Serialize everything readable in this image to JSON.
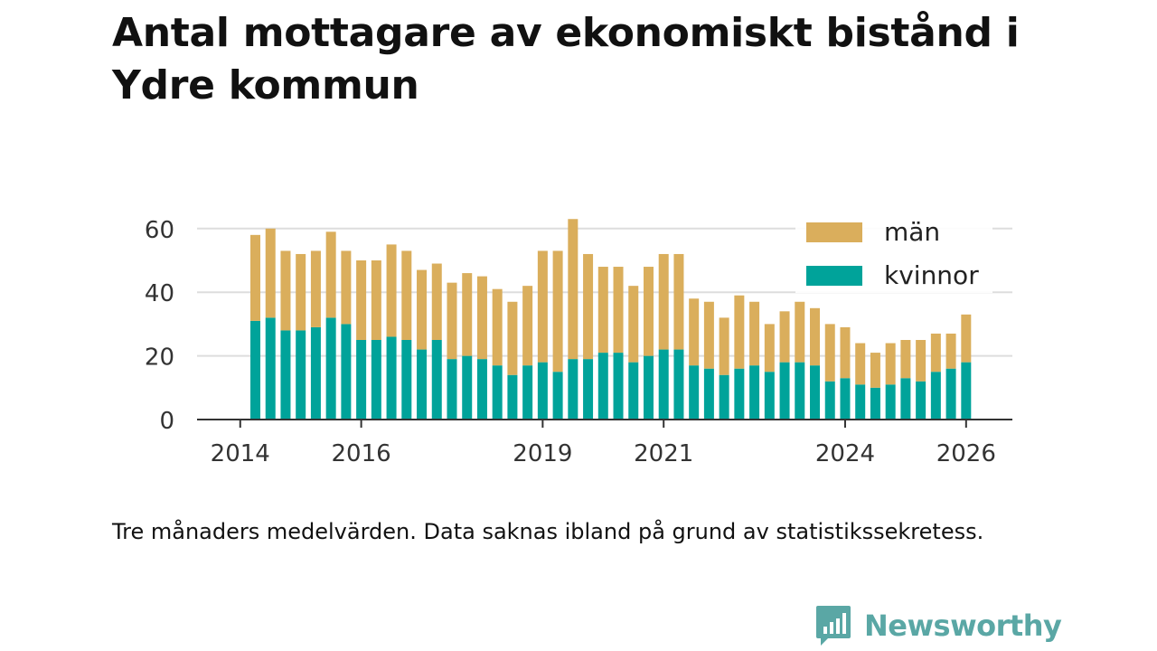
{
  "chart_data": {
    "type": "bar",
    "stacked": true,
    "title": "Antal mottagare av ekonomiskt bistånd i Ydre kommun",
    "xlabel": "",
    "ylabel": "",
    "ylim": [
      0,
      63
    ],
    "yticks": [
      0,
      20,
      40,
      60
    ],
    "xticks": [
      {
        "label": "2014",
        "index": -1
      },
      {
        "label": "2016",
        "index": 7
      },
      {
        "label": "2019",
        "index": 19
      },
      {
        "label": "2021",
        "index": 27
      },
      {
        "label": "2024",
        "index": 39
      },
      {
        "label": "2026",
        "index": 47
      }
    ],
    "legend_position": "top-right",
    "series": [
      {
        "name": "kvinnor",
        "color": "#00a39a",
        "values": [
          31,
          32,
          28,
          28,
          29,
          32,
          30,
          25,
          25,
          26,
          25,
          22,
          25,
          19,
          20,
          19,
          17,
          14,
          17,
          18,
          15,
          19,
          19,
          21,
          21,
          18,
          20,
          22,
          22,
          17,
          16,
          14,
          16,
          17,
          15,
          18,
          18,
          17,
          12,
          13,
          11,
          10,
          11,
          13,
          12,
          15,
          16,
          18
        ]
      },
      {
        "name": "män",
        "color": "#daae5c",
        "values": [
          27,
          28,
          25,
          24,
          24,
          27,
          23,
          25,
          25,
          29,
          28,
          25,
          24,
          24,
          26,
          26,
          24,
          23,
          25,
          35,
          38,
          44,
          33,
          27,
          27,
          24,
          28,
          30,
          30,
          21,
          21,
          18,
          23,
          20,
          15,
          16,
          19,
          18,
          18,
          16,
          13,
          11,
          13,
          12,
          13,
          12,
          11,
          15
        ]
      }
    ]
  },
  "note": "Tre månaders medelvärden. Data saknas ibland på grund av statistikssekretess.",
  "brand": {
    "name": "Newsworthy",
    "icon": "newsworthy-logo-icon",
    "color": "#5aa7a5"
  }
}
